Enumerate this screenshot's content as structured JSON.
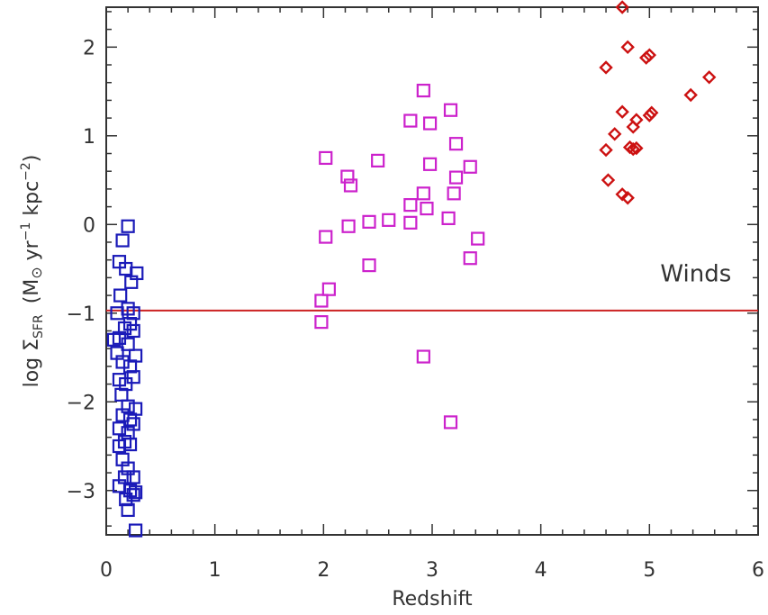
{
  "chart_data": {
    "type": "scatter",
    "title": "",
    "xlabel": "Redshift",
    "ylabel": {
      "prefix": "log Σ",
      "sub": "SFR",
      "units_pre": "(M",
      "sun": "⊙",
      "units_mid": " yr",
      "sup1": "−1",
      "units_kpc": " kpc",
      "sup2": "−2",
      "units_post": ")"
    },
    "xlim": [
      0,
      6
    ],
    "ylim": [
      -3.5,
      2.45
    ],
    "xticks": [
      0,
      1,
      2,
      3,
      4,
      5,
      6
    ],
    "xtick_labels": [
      "0",
      "1",
      "2",
      "3",
      "4",
      "5",
      "6"
    ],
    "yticks": [
      -3,
      -2,
      -1,
      0,
      1,
      2
    ],
    "ytick_labels": [
      "−3",
      "−2",
      "−1",
      "0",
      "1",
      "2"
    ],
    "grid": false,
    "threshold_line": {
      "y": -0.97,
      "color": "#cc2222"
    },
    "annotation": {
      "text": "Winds",
      "x": 5.1,
      "y": -0.55
    },
    "series": [
      {
        "marker": "square",
        "color": "#1a1ab8",
        "points": [
          [
            0.2,
            -0.02
          ],
          [
            0.15,
            -0.18
          ],
          [
            0.12,
            -0.42
          ],
          [
            0.18,
            -0.5
          ],
          [
            0.28,
            -0.55
          ],
          [
            0.23,
            -0.65
          ],
          [
            0.13,
            -0.8
          ],
          [
            0.2,
            -0.95
          ],
          [
            0.25,
            -1.0
          ],
          [
            0.1,
            -1.0
          ],
          [
            0.22,
            -1.12
          ],
          [
            0.17,
            -1.17
          ],
          [
            0.07,
            -1.3
          ],
          [
            0.12,
            -1.28
          ],
          [
            0.25,
            -1.2
          ],
          [
            0.2,
            -1.35
          ],
          [
            0.1,
            -1.45
          ],
          [
            0.15,
            -1.55
          ],
          [
            0.22,
            -1.6
          ],
          [
            0.27,
            -1.48
          ],
          [
            0.12,
            -1.75
          ],
          [
            0.18,
            -1.8
          ],
          [
            0.25,
            -1.72
          ],
          [
            0.14,
            -1.92
          ],
          [
            0.2,
            -2.05
          ],
          [
            0.27,
            -2.08
          ],
          [
            0.15,
            -2.15
          ],
          [
            0.22,
            -2.2
          ],
          [
            0.12,
            -2.3
          ],
          [
            0.2,
            -2.35
          ],
          [
            0.25,
            -2.25
          ],
          [
            0.17,
            -2.45
          ],
          [
            0.12,
            -2.5
          ],
          [
            0.22,
            -2.48
          ],
          [
            0.15,
            -2.65
          ],
          [
            0.2,
            -2.75
          ],
          [
            0.25,
            -2.85
          ],
          [
            0.17,
            -2.85
          ],
          [
            0.12,
            -2.95
          ],
          [
            0.22,
            -3.0
          ],
          [
            0.27,
            -3.02
          ],
          [
            0.18,
            -3.1
          ],
          [
            0.25,
            -3.05
          ],
          [
            0.2,
            -3.22
          ],
          [
            0.27,
            -3.45
          ]
        ]
      },
      {
        "marker": "square",
        "color": "#cc22cc",
        "points": [
          [
            1.98,
            -0.86
          ],
          [
            1.98,
            -1.1
          ],
          [
            2.05,
            -0.73
          ],
          [
            2.02,
            0.75
          ],
          [
            2.02,
            -0.14
          ],
          [
            2.22,
            0.54
          ],
          [
            2.25,
            0.44
          ],
          [
            2.23,
            -0.02
          ],
          [
            2.42,
            0.03
          ],
          [
            2.42,
            -0.46
          ],
          [
            2.5,
            0.72
          ],
          [
            2.6,
            0.05
          ],
          [
            2.8,
            0.02
          ],
          [
            2.8,
            1.17
          ],
          [
            2.8,
            0.22
          ],
          [
            2.92,
            1.51
          ],
          [
            2.92,
            0.35
          ],
          [
            2.95,
            0.18
          ],
          [
            2.98,
            0.68
          ],
          [
            2.98,
            1.14
          ],
          [
            2.92,
            -1.49
          ],
          [
            3.15,
            0.07
          ],
          [
            3.17,
            1.29
          ],
          [
            3.2,
            0.35
          ],
          [
            3.22,
            0.53
          ],
          [
            3.22,
            0.91
          ],
          [
            3.35,
            0.65
          ],
          [
            3.35,
            -0.38
          ],
          [
            3.42,
            -0.16
          ],
          [
            3.17,
            -2.23
          ]
        ]
      },
      {
        "marker": "diamond",
        "color": "#cc1111",
        "points": [
          [
            4.6,
            1.77
          ],
          [
            4.8,
            2.0
          ],
          [
            4.75,
            2.45
          ],
          [
            4.6,
            0.84
          ],
          [
            4.62,
            0.5
          ],
          [
            4.68,
            1.02
          ],
          [
            4.75,
            1.27
          ],
          [
            4.75,
            0.34
          ],
          [
            4.8,
            0.3
          ],
          [
            4.85,
            0.85
          ],
          [
            4.85,
            1.1
          ],
          [
            4.88,
            1.18
          ],
          [
            4.88,
            0.86
          ],
          [
            4.97,
            1.88
          ],
          [
            5.0,
            1.91
          ],
          [
            5.0,
            1.23
          ],
          [
            5.02,
            1.26
          ],
          [
            5.38,
            1.46
          ],
          [
            5.55,
            1.66
          ],
          [
            4.82,
            0.87
          ]
        ]
      }
    ]
  }
}
